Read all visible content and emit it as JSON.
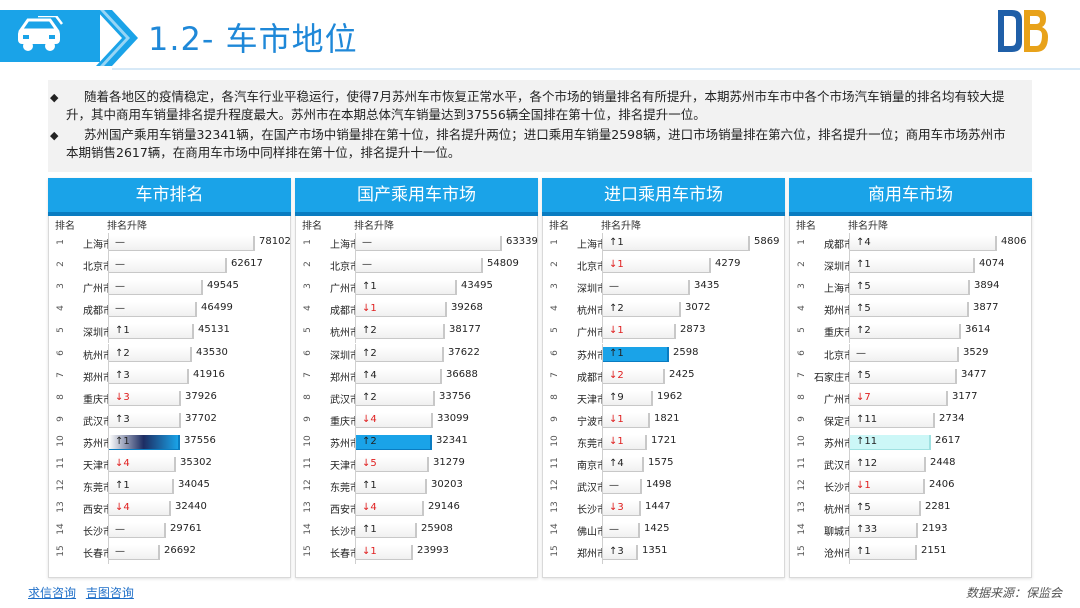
{
  "header": {
    "title": "1.2- 车市地位",
    "icon": "car-icon"
  },
  "description": [
    "随着各地区的疫情稳定，各汽车行业平稳运行，使得7月苏州车市恢复正常水平，各个市场的销量排名有所提升，本期苏州市车市中各个市场汽车销量的排名均有较大提升，其中商用车销量排名提升程度最大。苏州市在本期总体汽车销量达到37556辆全国排在第十位，排名提升一位。",
    "苏州国产乘用车销量32341辆，在国产市场中销量排在第十位，排名提升两位；进口乘用车销量2598辆，进口市场销量排在第六位，排名提升一位；商用车市场苏州市本期销售2617辆，在商用车市场中同样排在第十位，排名提升十一位。"
  ],
  "column_headers": {
    "rank": "排名",
    "change": "排名升降"
  },
  "chart_data": [
    {
      "type": "bar",
      "title": "车市排名",
      "ranks": [
        "1",
        "2",
        "3",
        "4",
        "5",
        "6",
        "7",
        "8",
        "9",
        "10",
        "11",
        "12",
        "13",
        "14",
        "15"
      ],
      "categories": [
        "上海市",
        "北京市",
        "广州市",
        "成都市",
        "深圳市",
        "杭州市",
        "郑州市",
        "重庆市",
        "武汉市",
        "苏州市",
        "天津市",
        "东莞市",
        "西安市",
        "长沙市",
        "长春市"
      ],
      "changes": [
        "—",
        "—",
        "—",
        "—",
        "↑1",
        "↑2",
        "↑3",
        "↓3",
        "↑3",
        "↑1",
        "↓4",
        "↑1",
        "↓4",
        "—",
        "—"
      ],
      "values": [
        78102,
        62617,
        49545,
        46499,
        45131,
        43530,
        41916,
        37926,
        37702,
        37556,
        35302,
        34045,
        32440,
        29761,
        26692
      ],
      "highlight_index": 9,
      "xlim": [
        0,
        80000
      ]
    },
    {
      "type": "bar",
      "title": "国产乘用车市场",
      "ranks": [
        "1",
        "2",
        "3",
        "4",
        "5",
        "6",
        "7",
        "8",
        "9",
        "10",
        "11",
        "12",
        "13",
        "14",
        "15"
      ],
      "categories": [
        "上海市",
        "北京市",
        "广州市",
        "成都市",
        "杭州市",
        "深圳市",
        "郑州市",
        "武汉市",
        "重庆市",
        "苏州市",
        "天津市",
        "东莞市",
        "西安市",
        "长沙市",
        "长春市"
      ],
      "changes": [
        "—",
        "—",
        "↑1",
        "↓1",
        "↑2",
        "↑2",
        "↑4",
        "↑2",
        "↓4",
        "↑2",
        "↓5",
        "↑1",
        "↓4",
        "↑1",
        "↓1"
      ],
      "values": [
        63339,
        54809,
        43495,
        39268,
        38177,
        37622,
        36688,
        33756,
        33099,
        32341,
        31279,
        30203,
        29146,
        25908,
        23993
      ],
      "highlight_index": 9,
      "xlim": [
        0,
        65000
      ]
    },
    {
      "type": "bar",
      "title": "进口乘用车市场",
      "ranks": [
        "1",
        "2",
        "3",
        "4",
        "5",
        "6",
        "7",
        "8",
        "9",
        "10",
        "11",
        "12",
        "13",
        "14",
        "15"
      ],
      "categories": [
        "上海市",
        "北京市",
        "深圳市",
        "杭州市",
        "广州市",
        "苏州市",
        "成都市",
        "天津市",
        "宁波市",
        "东莞市",
        "南京市",
        "武汉市",
        "长沙市",
        "佛山市",
        "郑州市"
      ],
      "changes": [
        "↑1",
        "↓1",
        "—",
        "↑2",
        "↓1",
        "↑1",
        "↓2",
        "↑9",
        "↓1",
        "↓1",
        "↑4",
        "—",
        "↓3",
        "—",
        "↑3"
      ],
      "values": [
        5869,
        4279,
        3435,
        3072,
        2873,
        2598,
        2425,
        1962,
        1821,
        1721,
        1575,
        1498,
        1447,
        1425,
        1351
      ],
      "highlight_index": 5,
      "xlim": [
        0,
        6000
      ]
    },
    {
      "type": "bar",
      "title": "商用车市场",
      "ranks": [
        "1",
        "2",
        "3",
        "4",
        "5",
        "6",
        "7",
        "8",
        "9",
        "10",
        "11",
        "12",
        "13",
        "14",
        "15"
      ],
      "categories": [
        "成都市",
        "深圳市",
        "上海市",
        "郑州市",
        "重庆市",
        "北京市",
        "石家庄市",
        "广州市",
        "保定市",
        "苏州市",
        "武汉市",
        "长沙市",
        "杭州市",
        "聊城市",
        "沧州市"
      ],
      "changes": [
        "↑4",
        "↑1",
        "↑5",
        "↑5",
        "↑2",
        "—",
        "↑5",
        "↓7",
        "↑11",
        "↑11",
        "↑12",
        "↓1",
        "↑5",
        "↑33",
        "↑1"
      ],
      "values": [
        4806,
        4074,
        3894,
        3877,
        3614,
        3529,
        3477,
        3177,
        2734,
        2617,
        2448,
        2406,
        2281,
        2193,
        2151
      ],
      "highlight_index": 9,
      "xlim": [
        0,
        4900
      ]
    }
  ],
  "footer": {
    "links": [
      "求信咨询",
      "吉图咨询"
    ],
    "source": "数据来源：保监会"
  },
  "colors": {
    "accent": "#1aa3e8",
    "accent_dark": "#0a7cc1",
    "title": "#1f88d8",
    "down": "#e02020"
  }
}
